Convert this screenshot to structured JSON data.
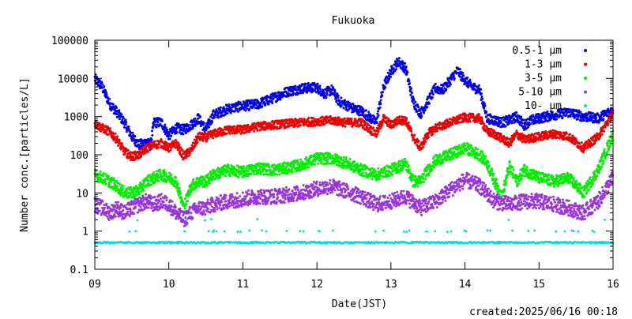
{
  "chart_data": {
    "type": "scatter",
    "title": "Fukuoka",
    "xlabel": "Date(JST)",
    "ylabel": "Number conc.[particles/L]",
    "footer": "created:2025/06/16 00:18",
    "y_scale": "log",
    "ylim": [
      0.1,
      100000
    ],
    "xlim": [
      9,
      16
    ],
    "x_tick_labels": [
      "09",
      "10",
      "11",
      "12",
      "13",
      "14",
      "15",
      "16"
    ],
    "y_tick_labels": [
      "0.1",
      "1",
      "10",
      "100",
      "1000",
      "10000",
      "100000"
    ],
    "grid": false,
    "legend_position": "top-right",
    "series": [
      {
        "name": "0.5-1 μm",
        "color": "#0000ee",
        "points": [
          [
            9.0,
            10000
          ],
          [
            9.1,
            6000
          ],
          [
            9.2,
            2200
          ],
          [
            9.3,
            1300
          ],
          [
            9.4,
            700
          ],
          [
            9.5,
            300
          ],
          [
            9.6,
            180
          ],
          [
            9.7,
            220
          ],
          [
            9.75,
            170
          ],
          [
            9.8,
            700
          ],
          [
            9.9,
            700
          ],
          [
            10.0,
            320
          ],
          [
            10.1,
            500
          ],
          [
            10.2,
            450
          ],
          [
            10.3,
            600
          ],
          [
            10.4,
            900
          ],
          [
            10.5,
            450
          ],
          [
            10.6,
            1100
          ],
          [
            10.8,
            1600
          ],
          [
            11.0,
            1900
          ],
          [
            11.2,
            2100
          ],
          [
            11.4,
            3000
          ],
          [
            11.6,
            4500
          ],
          [
            11.8,
            5500
          ],
          [
            12.0,
            5800
          ],
          [
            12.1,
            4000
          ],
          [
            12.2,
            5000
          ],
          [
            12.3,
            2500
          ],
          [
            12.5,
            1600
          ],
          [
            12.6,
            1400
          ],
          [
            12.7,
            1000
          ],
          [
            12.8,
            700
          ],
          [
            12.9,
            6000
          ],
          [
            13.0,
            15000
          ],
          [
            13.1,
            28000
          ],
          [
            13.2,
            18000
          ],
          [
            13.3,
            2500
          ],
          [
            13.4,
            1200
          ],
          [
            13.5,
            2500
          ],
          [
            13.6,
            5500
          ],
          [
            13.7,
            5000
          ],
          [
            13.8,
            9000
          ],
          [
            13.9,
            16000
          ],
          [
            14.0,
            9000
          ],
          [
            14.1,
            6000
          ],
          [
            14.2,
            5000
          ],
          [
            14.3,
            900
          ],
          [
            14.4,
            800
          ],
          [
            14.5,
            700
          ],
          [
            14.6,
            800
          ],
          [
            14.7,
            1000
          ],
          [
            14.8,
            600
          ],
          [
            14.9,
            800
          ],
          [
            15.0,
            900
          ],
          [
            15.2,
            1100
          ],
          [
            15.4,
            1300
          ],
          [
            15.6,
            1000
          ],
          [
            15.8,
            900
          ],
          [
            16.0,
            1500
          ]
        ]
      },
      {
        "name": "1-3 μm",
        "color": "#ee0000",
        "points": [
          [
            9.0,
            650
          ],
          [
            9.1,
            500
          ],
          [
            9.2,
            400
          ],
          [
            9.3,
            250
          ],
          [
            9.4,
            120
          ],
          [
            9.5,
            90
          ],
          [
            9.6,
            100
          ],
          [
            9.7,
            150
          ],
          [
            9.8,
            180
          ],
          [
            9.9,
            200
          ],
          [
            10.0,
            150
          ],
          [
            10.1,
            200
          ],
          [
            10.2,
            90
          ],
          [
            10.3,
            130
          ],
          [
            10.4,
            300
          ],
          [
            10.5,
            280
          ],
          [
            10.6,
            350
          ],
          [
            10.8,
            450
          ],
          [
            11.0,
            450
          ],
          [
            11.2,
            550
          ],
          [
            11.4,
            600
          ],
          [
            11.6,
            650
          ],
          [
            11.8,
            700
          ],
          [
            12.0,
            750
          ],
          [
            12.2,
            800
          ],
          [
            12.4,
            700
          ],
          [
            12.6,
            700
          ],
          [
            12.8,
            350
          ],
          [
            12.9,
            900
          ],
          [
            13.0,
            600
          ],
          [
            13.1,
            800
          ],
          [
            13.2,
            800
          ],
          [
            13.3,
            300
          ],
          [
            13.4,
            150
          ],
          [
            13.5,
            350
          ],
          [
            13.6,
            500
          ],
          [
            13.8,
            700
          ],
          [
            14.0,
            950
          ],
          [
            14.2,
            900
          ],
          [
            14.3,
            400
          ],
          [
            14.4,
            350
          ],
          [
            14.6,
            200
          ],
          [
            14.7,
            350
          ],
          [
            14.8,
            250
          ],
          [
            15.0,
            300
          ],
          [
            15.2,
            350
          ],
          [
            15.4,
            300
          ],
          [
            15.6,
            150
          ],
          [
            15.8,
            300
          ],
          [
            16.0,
            1200
          ]
        ]
      },
      {
        "name": "3-5 μm",
        "color": "#00ee00",
        "points": [
          [
            9.0,
            30
          ],
          [
            9.1,
            25
          ],
          [
            9.2,
            20
          ],
          [
            9.3,
            15
          ],
          [
            9.4,
            10
          ],
          [
            9.5,
            10
          ],
          [
            9.6,
            12
          ],
          [
            9.7,
            20
          ],
          [
            9.8,
            25
          ],
          [
            9.9,
            30
          ],
          [
            10.0,
            25
          ],
          [
            10.1,
            20
          ],
          [
            10.2,
            4
          ],
          [
            10.3,
            15
          ],
          [
            10.4,
            20
          ],
          [
            10.5,
            20
          ],
          [
            10.6,
            30
          ],
          [
            10.8,
            40
          ],
          [
            11.0,
            35
          ],
          [
            11.2,
            45
          ],
          [
            11.4,
            40
          ],
          [
            11.6,
            45
          ],
          [
            11.8,
            55
          ],
          [
            12.0,
            80
          ],
          [
            12.2,
            80
          ],
          [
            12.4,
            60
          ],
          [
            12.6,
            40
          ],
          [
            12.8,
            30
          ],
          [
            13.0,
            40
          ],
          [
            13.2,
            60
          ],
          [
            13.3,
            20
          ],
          [
            13.4,
            20
          ],
          [
            13.5,
            40
          ],
          [
            13.6,
            70
          ],
          [
            13.8,
            100
          ],
          [
            14.0,
            150
          ],
          [
            14.2,
            100
          ],
          [
            14.3,
            60
          ],
          [
            14.4,
            20
          ],
          [
            14.5,
            8
          ],
          [
            14.6,
            50
          ],
          [
            14.7,
            20
          ],
          [
            14.8,
            40
          ],
          [
            15.0,
            25
          ],
          [
            15.2,
            20
          ],
          [
            15.4,
            25
          ],
          [
            15.6,
            10
          ],
          [
            15.8,
            40
          ],
          [
            16.0,
            350
          ]
        ]
      },
      {
        "name": "5-10 μm",
        "color": "#9933dd",
        "points": [
          [
            9.0,
            5
          ],
          [
            9.1,
            4
          ],
          [
            9.2,
            3
          ],
          [
            9.3,
            4
          ],
          [
            9.4,
            3
          ],
          [
            9.5,
            4
          ],
          [
            9.6,
            5
          ],
          [
            9.7,
            6
          ],
          [
            9.8,
            5
          ],
          [
            9.9,
            6
          ],
          [
            10.0,
            5
          ],
          [
            10.1,
            3
          ],
          [
            10.2,
            2
          ],
          [
            10.3,
            3
          ],
          [
            10.4,
            4
          ],
          [
            10.5,
            4
          ],
          [
            10.6,
            5
          ],
          [
            10.8,
            6
          ],
          [
            11.0,
            7
          ],
          [
            11.2,
            8
          ],
          [
            11.4,
            8
          ],
          [
            11.6,
            9
          ],
          [
            11.8,
            10
          ],
          [
            12.0,
            13
          ],
          [
            12.2,
            15
          ],
          [
            12.4,
            11
          ],
          [
            12.6,
            8
          ],
          [
            12.8,
            5
          ],
          [
            13.0,
            6
          ],
          [
            13.2,
            8
          ],
          [
            13.4,
            4
          ],
          [
            13.6,
            6
          ],
          [
            13.8,
            12
          ],
          [
            14.0,
            22
          ],
          [
            14.2,
            15
          ],
          [
            14.4,
            6
          ],
          [
            14.6,
            5
          ],
          [
            14.8,
            6
          ],
          [
            15.0,
            6
          ],
          [
            15.2,
            5
          ],
          [
            15.4,
            4
          ],
          [
            15.6,
            3
          ],
          [
            15.8,
            6
          ],
          [
            16.0,
            25
          ]
        ]
      },
      {
        "name": "10- μm",
        "color": "#00dddd",
        "points": [
          [
            9.0,
            0.5
          ],
          [
            9.5,
            0.5
          ],
          [
            10.0,
            0.5
          ],
          [
            10.5,
            0.5
          ],
          [
            11.0,
            0.5
          ],
          [
            11.5,
            0.5
          ],
          [
            12.0,
            0.5
          ],
          [
            12.5,
            0.5
          ],
          [
            13.0,
            0.5
          ],
          [
            13.5,
            0.5
          ],
          [
            14.0,
            0.5
          ],
          [
            14.5,
            0.5
          ],
          [
            15.0,
            0.5
          ],
          [
            15.5,
            0.5
          ],
          [
            16.0,
            0.5
          ],
          [
            9.05,
            1
          ],
          [
            9.6,
            1
          ],
          [
            10.1,
            1
          ],
          [
            10.25,
            1
          ],
          [
            11.0,
            1
          ],
          [
            11.8,
            1
          ],
          [
            12.3,
            1
          ],
          [
            13.1,
            1
          ],
          [
            13.4,
            1
          ],
          [
            14.1,
            1
          ],
          [
            14.6,
            1
          ],
          [
            15.3,
            1
          ],
          [
            15.9,
            1
          ],
          [
            14.3,
            2
          ],
          [
            15.5,
            2
          ]
        ]
      }
    ]
  }
}
